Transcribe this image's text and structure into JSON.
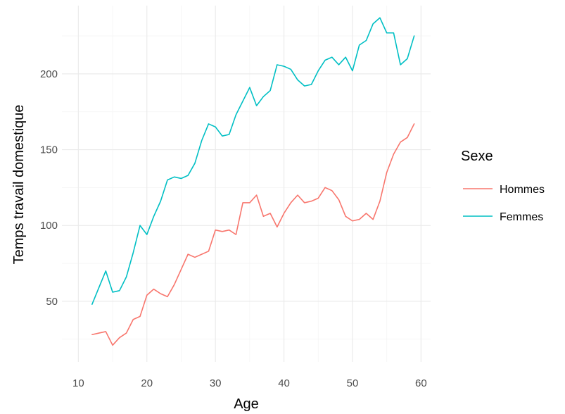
{
  "chart_data": {
    "type": "line",
    "xlabel": "Age",
    "ylabel": "Temps travail domestique",
    "xlim": [
      7.6,
      61.4
    ],
    "ylim": [
      10,
      245
    ],
    "x_ticks": [
      10,
      20,
      30,
      40,
      50,
      60
    ],
    "y_ticks": [
      50,
      100,
      150,
      200
    ],
    "grid": true,
    "legend": {
      "title": "Sexe",
      "placement": "right"
    },
    "x": [
      12,
      13,
      14,
      15,
      16,
      17,
      18,
      19,
      20,
      21,
      22,
      23,
      24,
      25,
      26,
      27,
      28,
      29,
      30,
      31,
      32,
      33,
      34,
      35,
      36,
      37,
      38,
      39,
      40,
      41,
      42,
      43,
      44,
      45,
      46,
      47,
      48,
      49,
      50,
      51,
      52,
      53,
      54,
      55,
      56,
      57,
      58,
      59
    ],
    "series": [
      {
        "name": "Hommes",
        "color": "#F8766D",
        "values": [
          28,
          29,
          30,
          21,
          26,
          29,
          38,
          40,
          54,
          58,
          55,
          53,
          61,
          71,
          81,
          79,
          81,
          83,
          97,
          96,
          97,
          94,
          115,
          115,
          120,
          106,
          108,
          99,
          108,
          115,
          120,
          115,
          116,
          118,
          125,
          123,
          117,
          106,
          103,
          104,
          108,
          104,
          116,
          135,
          147,
          155,
          158,
          167
        ]
      },
      {
        "name": "Femmes",
        "color": "#00BFC4",
        "values": [
          48,
          59,
          70,
          56,
          57,
          66,
          82,
          100,
          94,
          106,
          116,
          130,
          132,
          131,
          133,
          141,
          156,
          167,
          165,
          159,
          160,
          173,
          182,
          191,
          179,
          185,
          189,
          206,
          205,
          203,
          196,
          192,
          193,
          202,
          209,
          211,
          206,
          211,
          202,
          219,
          222,
          233,
          237,
          227,
          227,
          206,
          210,
          225
        ]
      }
    ]
  }
}
